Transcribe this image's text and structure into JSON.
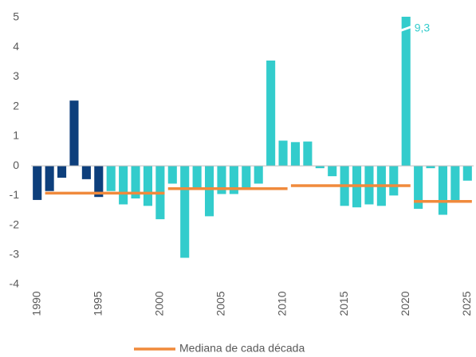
{
  "chart_data": {
    "type": "bar",
    "xlim": [
      1989.5,
      2025.5
    ],
    "xticks": [
      1990,
      1995,
      2000,
      2005,
      2010,
      2015,
      2020,
      2025
    ],
    "ylim": [
      -4,
      5
    ],
    "yticks": [
      -4,
      -3,
      -2,
      -1,
      0,
      1,
      2,
      3,
      4,
      5
    ],
    "grid": false,
    "series": [
      {
        "color": "#0d3f7c",
        "x": [
          1990,
          1991,
          1992,
          1993,
          1994,
          1995
        ],
        "values": [
          -1.15,
          -0.85,
          -0.4,
          2.2,
          -0.45,
          -1.05
        ]
      },
      {
        "color": "#33cccc",
        "x": [
          1996,
          1997,
          1998,
          1999,
          2000,
          2001,
          2002,
          2003,
          2004,
          2005,
          2006,
          2007,
          2008,
          2009,
          2010,
          2011,
          2012,
          2013,
          2014,
          2015,
          2016,
          2017,
          2018,
          2019,
          2020,
          2021,
          2022,
          2023,
          2024,
          2025
        ],
        "values": [
          -0.85,
          -1.3,
          -1.1,
          -1.35,
          -1.8,
          -0.6,
          -3.1,
          -0.75,
          -1.7,
          -0.95,
          -0.95,
          -0.75,
          -0.6,
          3.55,
          0.85,
          0.8,
          0.82,
          -0.08,
          -0.35,
          -1.35,
          -1.4,
          -1.3,
          -1.35,
          -1.0,
          9.3,
          -1.45,
          -0.08,
          -1.65,
          -1.2,
          -0.5
        ],
        "value_labels": [
          null,
          null,
          null,
          null,
          null,
          null,
          null,
          null,
          null,
          null,
          null,
          null,
          null,
          null,
          null,
          null,
          null,
          null,
          null,
          null,
          null,
          null,
          null,
          null,
          "9,3",
          null,
          null,
          null,
          null,
          null
        ]
      }
    ],
    "medians": {
      "name": "Mediana de cada década",
      "color": "#f08a3c",
      "segments": [
        {
          "x": [
            1991,
            2000
          ],
          "value": -0.92
        },
        {
          "x": [
            2001,
            2010
          ],
          "value": -0.77
        },
        {
          "x": [
            2011,
            2020
          ],
          "value": -0.67
        },
        {
          "x": [
            2021,
            2025
          ],
          "value": -1.2
        }
      ]
    }
  }
}
